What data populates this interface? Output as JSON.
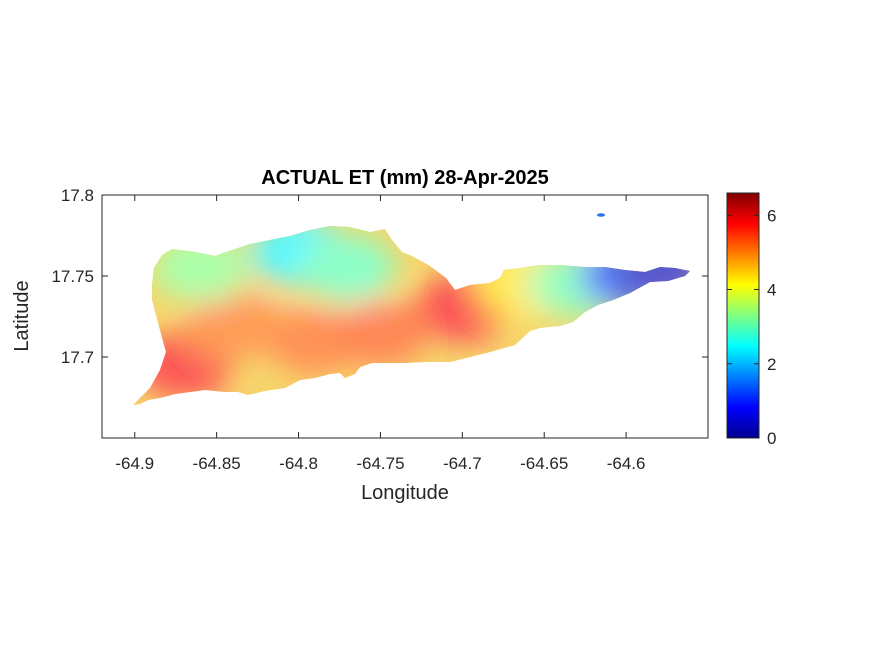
{
  "chart_data": {
    "type": "heatmap",
    "title": "ACTUAL ET (mm) 28-Apr-2025",
    "xlabel": "Longitude",
    "ylabel": "Latitude",
    "xlim": [
      -64.92,
      -64.55
    ],
    "ylim": [
      17.65,
      17.8
    ],
    "xticks": [
      -64.9,
      -64.85,
      -64.8,
      -64.75,
      -64.7,
      -64.65,
      -64.6
    ],
    "xtick_labels": [
      "-64.9",
      "-64.85",
      "-64.8",
      "-64.75",
      "-64.7",
      "-64.65",
      "-64.6"
    ],
    "yticks": [
      17.7,
      17.75,
      17.8
    ],
    "ytick_labels": [
      "17.7",
      "17.75",
      "17.8"
    ],
    "colorbar": {
      "colormap": "jet",
      "range": [
        0,
        6.6
      ],
      "ticks": [
        0,
        2,
        4,
        6
      ],
      "tick_labels": [
        "0",
        "2",
        "4",
        "6"
      ]
    },
    "colormap_stops": [
      "#00008f",
      "#0000ff",
      "#00ffff",
      "#ffff00",
      "#ff0000",
      "#800000"
    ],
    "grid": false,
    "regions": [
      {
        "lon": -64.87,
        "lat": 17.695,
        "value": 5.8
      },
      {
        "lon": -64.84,
        "lat": 17.72,
        "value": 5.1
      },
      {
        "lon": -64.86,
        "lat": 17.755,
        "value": 3.3
      },
      {
        "lon": -64.8,
        "lat": 17.765,
        "value": 2.4
      },
      {
        "lon": -64.77,
        "lat": 17.755,
        "value": 3.0
      },
      {
        "lon": -64.79,
        "lat": 17.71,
        "value": 5.2
      },
      {
        "lon": -64.75,
        "lat": 17.715,
        "value": 5.3
      },
      {
        "lon": -64.7,
        "lat": 17.73,
        "value": 5.8
      },
      {
        "lon": -64.66,
        "lat": 17.745,
        "value": 4.3
      },
      {
        "lon": -64.63,
        "lat": 17.745,
        "value": 3.1
      },
      {
        "lon": -64.6,
        "lat": 17.75,
        "value": 1.2
      },
      {
        "lon": -64.58,
        "lat": 17.753,
        "value": 0.3
      }
    ]
  }
}
